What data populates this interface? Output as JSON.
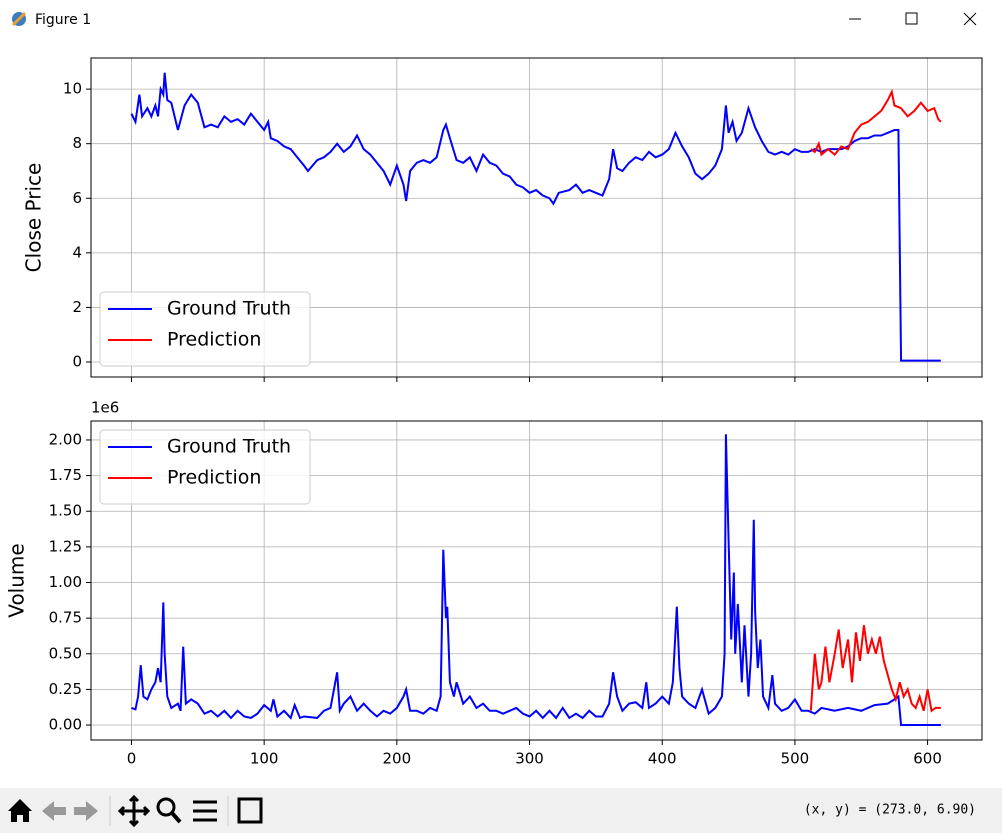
{
  "window": {
    "title": "Figure 1",
    "status_text": "(x, y) = (273.0, 6.90)"
  },
  "chart_data": [
    {
      "type": "line",
      "ylabel": "Close Price",
      "xlim": [
        -30.5,
        641
      ],
      "ylim": [
        -0.55,
        11.14
      ],
      "xticks": [
        0,
        100,
        200,
        300,
        400,
        500,
        600
      ],
      "xtick_labels_visible": false,
      "yticks": [
        0,
        2,
        4,
        6,
        8,
        10
      ],
      "grid": true,
      "legend": "lower left",
      "series": [
        {
          "name": "Ground Truth",
          "color": "#0000ff",
          "x": [
            0,
            3,
            6,
            8,
            12,
            15,
            18,
            20,
            22,
            24,
            25,
            27,
            30,
            35,
            40,
            45,
            50,
            55,
            60,
            65,
            70,
            75,
            80,
            85,
            90,
            95,
            100,
            103,
            105,
            110,
            115,
            120,
            125,
            130,
            133,
            140,
            145,
            150,
            155,
            160,
            165,
            170,
            175,
            180,
            185,
            190,
            195,
            200,
            205,
            207,
            210,
            215,
            220,
            225,
            230,
            235,
            237,
            240,
            245,
            250,
            255,
            260,
            265,
            270,
            275,
            280,
            285,
            290,
            295,
            300,
            305,
            310,
            315,
            318,
            322,
            330,
            335,
            340,
            345,
            350,
            355,
            360,
            363,
            366,
            370,
            375,
            380,
            385,
            390,
            395,
            400,
            405,
            410,
            415,
            420,
            425,
            430,
            435,
            440,
            445,
            448,
            450,
            453,
            456,
            460,
            465,
            470,
            475,
            480,
            485,
            490,
            495,
            500,
            505,
            510,
            515,
            520,
            525,
            530,
            535,
            540,
            545,
            550,
            555,
            560,
            565,
            570,
            575,
            578,
            580,
            590,
            600,
            610
          ],
          "values": [
            9.1,
            8.8,
            9.8,
            9.0,
            9.3,
            9.0,
            9.4,
            9.0,
            10.0,
            9.8,
            10.6,
            9.6,
            9.5,
            8.5,
            9.4,
            9.8,
            9.5,
            8.6,
            8.7,
            8.6,
            9.0,
            8.8,
            8.9,
            8.7,
            9.1,
            8.8,
            8.5,
            8.8,
            8.2,
            8.1,
            7.9,
            7.8,
            7.5,
            7.2,
            7.0,
            7.4,
            7.5,
            7.7,
            8.0,
            7.7,
            7.9,
            8.3,
            7.8,
            7.6,
            7.3,
            7.0,
            6.5,
            7.2,
            6.5,
            5.9,
            7.0,
            7.3,
            7.4,
            7.3,
            7.5,
            8.5,
            8.7,
            8.2,
            7.4,
            7.3,
            7.5,
            7.0,
            7.6,
            7.3,
            7.2,
            6.9,
            6.8,
            6.5,
            6.4,
            6.2,
            6.3,
            6.1,
            6.0,
            5.8,
            6.2,
            6.3,
            6.5,
            6.2,
            6.3,
            6.2,
            6.1,
            6.7,
            7.8,
            7.1,
            7.0,
            7.3,
            7.5,
            7.4,
            7.7,
            7.5,
            7.6,
            7.8,
            8.4,
            7.9,
            7.5,
            6.9,
            6.7,
            6.9,
            7.2,
            7.8,
            9.4,
            8.4,
            8.8,
            8.1,
            8.4,
            9.3,
            8.6,
            8.1,
            7.7,
            7.6,
            7.7,
            7.6,
            7.8,
            7.7,
            7.7,
            7.8,
            7.7,
            7.8,
            7.8,
            7.8,
            7.9,
            8.1,
            8.2,
            8.2,
            8.3,
            8.3,
            8.4,
            8.5,
            8.5,
            0.05,
            0.05,
            0.05,
            0.05
          ]
        },
        {
          "name": "Prediction",
          "color": "#ff0000",
          "x": [
            512,
            515,
            518,
            520,
            525,
            530,
            535,
            540,
            545,
            550,
            555,
            560,
            565,
            570,
            573,
            575,
            580,
            585,
            590,
            595,
            600,
            605,
            608,
            610
          ],
          "values": [
            7.8,
            7.7,
            8.0,
            7.6,
            7.8,
            7.6,
            7.9,
            7.8,
            8.4,
            8.7,
            8.8,
            9.0,
            9.2,
            9.6,
            9.9,
            9.4,
            9.3,
            9.0,
            9.2,
            9.5,
            9.2,
            9.3,
            8.9,
            8.8
          ]
        }
      ]
    },
    {
      "type": "line",
      "ylabel": "Volume",
      "offset_text": "1e6",
      "xlim": [
        -30.5,
        641
      ],
      "ylim": [
        -0.105,
        2.133
      ],
      "xticks": [
        0,
        100,
        200,
        300,
        400,
        500,
        600
      ],
      "xtick_labels_visible": true,
      "yticks": [
        {
          "value": 0,
          "label": "0.00"
        },
        0.25,
        {
          "value": 0.5,
          "label": "0.50"
        },
        0.75,
        {
          "value": 1,
          "label": "1.00"
        },
        1.25,
        {
          "value": 1.5,
          "label": "1.50"
        },
        1.75,
        {
          "value": 2,
          "label": "2.00"
        }
      ],
      "grid": true,
      "legend": "upper left",
      "series": [
        {
          "name": "Ground Truth",
          "color": "#0000ff",
          "x": [
            0,
            3,
            5,
            7,
            9,
            12,
            15,
            18,
            20,
            22,
            24,
            25,
            27,
            30,
            35,
            37,
            39,
            41,
            45,
            50,
            55,
            60,
            65,
            70,
            75,
            80,
            85,
            90,
            95,
            100,
            105,
            107,
            110,
            115,
            120,
            123,
            127,
            130,
            140,
            145,
            150,
            155,
            157,
            160,
            165,
            170,
            175,
            180,
            185,
            190,
            195,
            200,
            205,
            207,
            210,
            215,
            220,
            225,
            230,
            233,
            235,
            237,
            238,
            240,
            243,
            245,
            250,
            255,
            260,
            265,
            270,
            275,
            280,
            285,
            290,
            295,
            300,
            305,
            310,
            315,
            320,
            325,
            330,
            335,
            340,
            345,
            350,
            355,
            360,
            363,
            366,
            370,
            375,
            380,
            385,
            388,
            390,
            395,
            400,
            405,
            408,
            411,
            413,
            415,
            420,
            425,
            430,
            435,
            440,
            445,
            447,
            448,
            450,
            452,
            454,
            455,
            457,
            460,
            462,
            465,
            467,
            469,
            470,
            472,
            474,
            476,
            480,
            483,
            485,
            490,
            495,
            500,
            505,
            510,
            515,
            520,
            530,
            540,
            550,
            560,
            570,
            575,
            578,
            580,
            590,
            600,
            610
          ],
          "values": [
            0.12,
            0.11,
            0.2,
            0.42,
            0.2,
            0.18,
            0.25,
            0.3,
            0.4,
            0.3,
            0.86,
            0.5,
            0.2,
            0.12,
            0.15,
            0.1,
            0.55,
            0.15,
            0.18,
            0.15,
            0.08,
            0.1,
            0.06,
            0.1,
            0.05,
            0.1,
            0.06,
            0.05,
            0.08,
            0.14,
            0.1,
            0.18,
            0.06,
            0.1,
            0.05,
            0.14,
            0.05,
            0.06,
            0.05,
            0.1,
            0.12,
            0.37,
            0.1,
            0.15,
            0.2,
            0.1,
            0.15,
            0.1,
            0.06,
            0.1,
            0.08,
            0.12,
            0.2,
            0.25,
            0.1,
            0.1,
            0.08,
            0.12,
            0.1,
            0.2,
            1.23,
            0.75,
            0.83,
            0.3,
            0.2,
            0.3,
            0.15,
            0.2,
            0.12,
            0.15,
            0.1,
            0.1,
            0.08,
            0.1,
            0.12,
            0.08,
            0.06,
            0.1,
            0.05,
            0.1,
            0.05,
            0.12,
            0.05,
            0.08,
            0.05,
            0.1,
            0.06,
            0.06,
            0.15,
            0.37,
            0.2,
            0.1,
            0.15,
            0.16,
            0.12,
            0.3,
            0.12,
            0.15,
            0.2,
            0.15,
            0.3,
            0.83,
            0.4,
            0.2,
            0.15,
            0.12,
            0.25,
            0.08,
            0.12,
            0.2,
            0.5,
            2.04,
            1.3,
            0.6,
            1.07,
            0.5,
            0.85,
            0.3,
            0.7,
            0.2,
            0.5,
            1.44,
            0.8,
            0.4,
            0.6,
            0.2,
            0.12,
            0.35,
            0.15,
            0.1,
            0.12,
            0.18,
            0.1,
            0.1,
            0.08,
            0.12,
            0.1,
            0.12,
            0.1,
            0.14,
            0.15,
            0.18,
            0.2,
            0,
            0,
            0,
            0
          ]
        },
        {
          "name": "Prediction",
          "color": "#ff0000",
          "x": [
            512,
            515,
            518,
            520,
            523,
            526,
            530,
            533,
            536,
            540,
            543,
            546,
            549,
            552,
            555,
            558,
            561,
            564,
            567,
            570,
            573,
            576,
            579,
            582,
            585,
            588,
            591,
            594,
            597,
            600,
            603,
            606,
            610
          ],
          "values": [
            0.1,
            0.5,
            0.25,
            0.3,
            0.55,
            0.3,
            0.5,
            0.67,
            0.4,
            0.6,
            0.3,
            0.65,
            0.45,
            0.7,
            0.5,
            0.6,
            0.5,
            0.62,
            0.45,
            0.35,
            0.25,
            0.18,
            0.3,
            0.2,
            0.25,
            0.15,
            0.12,
            0.2,
            0.1,
            0.25,
            0.1,
            0.12,
            0.12
          ]
        }
      ]
    }
  ]
}
